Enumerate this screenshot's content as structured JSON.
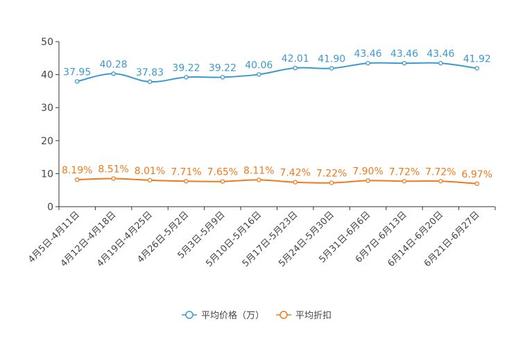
{
  "chart_data": {
    "type": "line",
    "title": "",
    "xlabel": "",
    "ylabel": "",
    "ylim": [
      0,
      50
    ],
    "yticks": [
      0,
      10,
      20,
      30,
      40,
      50
    ],
    "grid": false,
    "legend_position": "bottom-center",
    "categories": [
      "4月5日-4月11日",
      "4月12日-4月18日",
      "4月19日-4月25日",
      "4月26日-5月2日",
      "5月3日-5月9日",
      "5月10日-5月16日",
      "5月17日-5月23日",
      "5月24日-5月30日",
      "5月31日-6月6日",
      "6月7日-6月13日",
      "6月14日-6月20日",
      "6月21日-6月27日"
    ],
    "series": [
      {
        "name": "平均价格（万）",
        "color": "#3a9ad0",
        "values": [
          37.95,
          40.28,
          37.83,
          39.22,
          39.22,
          40.06,
          42.01,
          41.9,
          43.46,
          43.46,
          43.46,
          41.92
        ],
        "labels": [
          "37.95",
          "40.28",
          "37.83",
          "39.22",
          "39.22",
          "40.06",
          "42.01",
          "41.90",
          "43.46",
          "43.46",
          "43.46",
          "41.92"
        ]
      },
      {
        "name": "平均折扣",
        "color": "#f07a1a",
        "values": [
          8.19,
          8.51,
          8.01,
          7.71,
          7.65,
          8.11,
          7.42,
          7.22,
          7.9,
          7.72,
          7.72,
          6.97
        ],
        "labels": [
          "8.19%",
          "8.51%",
          "8.01%",
          "7.71%",
          "7.65%",
          "8.11%",
          "7.42%",
          "7.22%",
          "7.90%",
          "7.72%",
          "7.72%",
          "6.97%"
        ]
      }
    ]
  }
}
